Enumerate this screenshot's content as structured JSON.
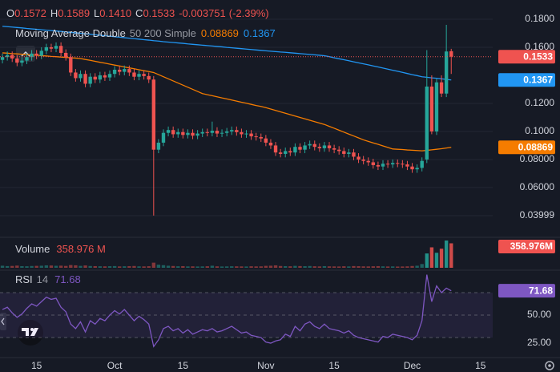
{
  "chart_data": {
    "type": "candlestick",
    "categories": [
      null,
      null,
      null,
      null,
      null,
      null,
      null,
      "15",
      null,
      null,
      null,
      null,
      null,
      null,
      null,
      null,
      null,
      null,
      null,
      null,
      null,
      null,
      null,
      "Oct",
      null,
      null,
      null,
      null,
      null,
      null,
      null,
      null,
      null,
      null,
      null,
      null,
      null,
      "15",
      null,
      null,
      null,
      null,
      null,
      null,
      null,
      null,
      null,
      null,
      null,
      null,
      null,
      null,
      null,
      null,
      "Nov",
      null,
      null,
      null,
      null,
      null,
      null,
      null,
      null,
      null,
      null,
      null,
      null,
      null,
      "15",
      null,
      null,
      null,
      null,
      null,
      null,
      null,
      null,
      null,
      null,
      null,
      null,
      null,
      null,
      null,
      "Dec",
      null,
      null,
      null,
      null,
      null,
      null,
      null,
      null,
      null,
      null,
      null,
      null,
      null,
      "15",
      null,
      null
    ],
    "open": [
      0.151,
      0.153,
      0.1545,
      0.152,
      0.149,
      0.1505,
      0.153,
      0.1555,
      0.154,
      0.1575,
      0.16,
      0.159,
      0.161,
      0.156,
      0.153,
      0.142,
      0.138,
      0.141,
      0.134,
      0.139,
      0.137,
      0.14,
      0.1385,
      0.141,
      0.144,
      0.1425,
      0.1445,
      0.142,
      0.139,
      0.141,
      0.1395,
      0.137,
      0.087,
      0.092,
      0.099,
      0.101,
      0.098,
      0.0995,
      0.0975,
      0.099,
      0.097,
      0.0985,
      0.0995,
      0.099,
      0.1005,
      0.0985,
      0.099,
      0.1,
      0.101,
      0.0995,
      0.098,
      0.0985,
      0.0965,
      0.096,
      0.095,
      0.092,
      0.09,
      0.085,
      0.084,
      0.086,
      0.085,
      0.089,
      0.087,
      0.09,
      0.091,
      0.089,
      0.088,
      0.09,
      0.088,
      0.087,
      0.086,
      0.084,
      0.085,
      0.082,
      0.08,
      0.079,
      0.078,
      0.076,
      0.075,
      0.077,
      0.0765,
      0.0775,
      0.077,
      0.0765,
      0.075,
      0.073,
      0.074,
      0.08,
      0.132,
      0.1,
      0.135,
      0.127,
      0.1572,
      null,
      null,
      null,
      null,
      null,
      null,
      null,
      null
    ],
    "high": [
      0.1555,
      0.157,
      0.157,
      0.1545,
      0.153,
      0.1555,
      0.158,
      0.158,
      0.16,
      0.1625,
      0.1625,
      0.1635,
      0.1635,
      0.1585,
      0.1555,
      0.1445,
      0.1435,
      0.1435,
      0.1415,
      0.1415,
      0.1425,
      0.1425,
      0.1435,
      0.1465,
      0.1465,
      0.147,
      0.147,
      0.1445,
      0.1435,
      0.1435,
      0.142,
      0.1395,
      0.0945,
      0.1015,
      0.1035,
      0.1035,
      0.102,
      0.102,
      0.1015,
      0.1015,
      0.101,
      0.102,
      0.102,
      0.107,
      0.103,
      0.1015,
      0.1025,
      0.1035,
      0.1035,
      0.102,
      0.101,
      0.101,
      0.099,
      0.0985,
      0.0975,
      0.0945,
      0.0925,
      0.0875,
      0.0885,
      0.0885,
      0.0915,
      0.0915,
      0.0925,
      0.0935,
      0.0935,
      0.0915,
      0.0925,
      0.0925,
      0.0905,
      0.0895,
      0.0885,
      0.0875,
      0.0875,
      0.0845,
      0.0825,
      0.0815,
      0.0805,
      0.0785,
      0.0795,
      0.0795,
      0.08,
      0.08,
      0.0795,
      0.079,
      0.0775,
      0.0765,
      0.0815,
      0.158,
      0.14,
      0.1375,
      0.14,
      0.176,
      0.1589,
      null,
      null,
      null,
      null,
      null,
      null,
      null,
      null
    ],
    "low": [
      0.1485,
      0.1505,
      0.1495,
      0.1465,
      0.1465,
      0.148,
      0.1505,
      0.1515,
      0.1515,
      0.155,
      0.1565,
      0.1565,
      0.1535,
      0.1505,
      0.1395,
      0.1355,
      0.1355,
      0.1315,
      0.1315,
      0.1345,
      0.1345,
      0.136,
      0.136,
      0.1385,
      0.14,
      0.14,
      0.1395,
      0.1365,
      0.1365,
      0.137,
      0.1345,
      0.04,
      0.0845,
      0.0895,
      0.0965,
      0.0955,
      0.0955,
      0.095,
      0.095,
      0.0945,
      0.0945,
      0.096,
      0.0965,
      0.0965,
      0.096,
      0.096,
      0.0965,
      0.0975,
      0.097,
      0.0955,
      0.0955,
      0.094,
      0.0935,
      0.0925,
      0.0895,
      0.0875,
      0.0825,
      0.0815,
      0.0815,
      0.0825,
      0.0825,
      0.0845,
      0.0845,
      0.0875,
      0.0865,
      0.0855,
      0.0855,
      0.0855,
      0.0845,
      0.0835,
      0.0815,
      0.0815,
      0.0795,
      0.0775,
      0.0765,
      0.0755,
      0.0735,
      0.0725,
      0.0725,
      0.074,
      0.074,
      0.0745,
      0.074,
      0.0725,
      0.0705,
      0.0705,
      0.0715,
      0.0775,
      0.098,
      0.0975,
      0.1245,
      0.1245,
      0.141,
      null,
      null,
      null,
      null,
      null,
      null,
      null,
      null
    ],
    "close": [
      0.153,
      0.1545,
      0.152,
      0.149,
      0.1505,
      0.153,
      0.1555,
      0.154,
      0.1575,
      0.16,
      0.159,
      0.161,
      0.156,
      0.153,
      0.142,
      0.138,
      0.141,
      0.134,
      0.139,
      0.137,
      0.14,
      0.1385,
      0.141,
      0.144,
      0.1425,
      0.1445,
      0.142,
      0.139,
      0.141,
      0.1395,
      0.137,
      0.087,
      0.092,
      0.099,
      0.101,
      0.098,
      0.0995,
      0.0975,
      0.099,
      0.097,
      0.0985,
      0.0995,
      0.099,
      0.1005,
      0.0985,
      0.099,
      0.1,
      0.101,
      0.0995,
      0.098,
      0.0985,
      0.0965,
      0.096,
      0.095,
      0.092,
      0.09,
      0.085,
      0.084,
      0.086,
      0.085,
      0.089,
      0.087,
      0.09,
      0.091,
      0.089,
      0.088,
      0.09,
      0.088,
      0.087,
      0.086,
      0.084,
      0.085,
      0.082,
      0.08,
      0.079,
      0.078,
      0.076,
      0.075,
      0.077,
      0.0765,
      0.0775,
      0.077,
      0.0765,
      0.075,
      0.073,
      0.074,
      0.079,
      0.132,
      0.1,
      0.135,
      0.127,
      0.157,
      0.1533,
      null,
      null,
      null,
      null,
      null,
      null,
      null,
      null
    ],
    "colors": {
      "up": "#26a69a",
      "down": "#ef5350"
    },
    "ylim": [
      0.0251,
      0.1937
    ],
    "yticks": [
      {
        "value": 0.18,
        "label": "0.1800"
      },
      {
        "value": 0.16,
        "label": "0.1600"
      },
      {
        "value": 0.12,
        "label": "0.1200"
      },
      {
        "value": 0.1,
        "label": "0.1000"
      },
      {
        "value": 0.08,
        "label": "0.08000"
      },
      {
        "value": 0.06,
        "label": "0.06000"
      },
      {
        "value": 0.03999,
        "label": "0.03999"
      }
    ],
    "grid": true,
    "header": {
      "items": [
        {
          "name": "O",
          "value": 0.1572
        },
        {
          "name": "H",
          "value": 0.1589
        },
        {
          "name": "L",
          "value": 0.141,
          "label": "0.1410"
        },
        {
          "name": "C",
          "value": 0.1533
        }
      ],
      "change": -0.003751,
      "change_pct": {
        "value": -2.39,
        "label": "(-2.39%)"
      }
    },
    "indicator": {
      "title": "Moving Average Double",
      "params": "50 200 Simple",
      "series": [
        {
          "color": "#f57c00",
          "values": [
            0.156,
            0.1558,
            0.1555,
            0.1553,
            0.155,
            0.1548,
            0.1545,
            0.1543,
            0.154,
            0.1538,
            0.1535,
            0.1533,
            0.153,
            0.1528,
            0.1525,
            0.1523,
            0.152,
            0.1513,
            0.1507,
            0.15,
            0.1493,
            0.1487,
            0.148,
            0.1473,
            0.1467,
            0.146,
            0.1453,
            0.1447,
            0.144,
            0.1433,
            0.1427,
            0.142,
            0.1405,
            0.139,
            0.1375,
            0.136,
            0.1345,
            0.133,
            0.1315,
            0.13,
            0.1285,
            0.127,
            0.1262,
            0.1255,
            0.1247,
            0.1239,
            0.1232,
            0.1224,
            0.1216,
            0.1208,
            0.1201,
            0.1193,
            0.1185,
            0.1178,
            0.117,
            0.116,
            0.115,
            0.114,
            0.113,
            0.112,
            0.111,
            0.11,
            0.109,
            0.108,
            0.107,
            0.106,
            0.105,
            0.1036,
            0.1023,
            0.1009,
            0.0995,
            0.0981,
            0.0968,
            0.0954,
            0.094,
            0.0929,
            0.0918,
            0.0908,
            0.0897,
            0.0886,
            0.0875,
            0.0873,
            0.0871,
            0.0868,
            0.0866,
            0.0864,
            0.0862,
            0.0865,
            0.0869,
            0.0873,
            0.0877,
            0.0882,
            0.08869,
            null,
            null,
            null,
            null,
            null,
            null,
            null,
            null
          ]
        },
        {
          "color": "#2196f3",
          "values": [
            0.175,
            0.1747,
            0.1744,
            0.1741,
            0.1738,
            0.1734,
            0.1731,
            0.1728,
            0.1725,
            0.1722,
            0.1719,
            0.1716,
            0.1713,
            0.1709,
            0.1706,
            0.1703,
            0.17,
            0.1696,
            0.1693,
            0.1689,
            0.1686,
            0.1682,
            0.1679,
            0.1675,
            0.1672,
            0.1668,
            0.1665,
            0.1661,
            0.1658,
            0.1654,
            0.1651,
            0.1647,
            0.1644,
            0.164,
            0.1637,
            0.1634,
            0.1631,
            0.1628,
            0.1624,
            0.1621,
            0.1618,
            0.1615,
            0.1612,
            0.1609,
            0.1606,
            0.1603,
            0.1599,
            0.1596,
            0.1593,
            0.159,
            0.1587,
            0.1584,
            0.1581,
            0.1578,
            0.1575,
            0.1572,
            0.1569,
            0.1566,
            0.1564,
            0.1561,
            0.1558,
            0.1555,
            0.1552,
            0.1549,
            0.1546,
            0.1543,
            0.154,
            0.1533,
            0.1525,
            0.1518,
            0.1511,
            0.1504,
            0.1496,
            0.1489,
            0.1482,
            0.1475,
            0.1467,
            0.146,
            0.1452,
            0.1444,
            0.1436,
            0.1429,
            0.1421,
            0.1413,
            0.1405,
            0.1398,
            0.139,
            0.1386,
            0.1382,
            0.1379,
            0.1375,
            0.1371,
            0.1367,
            null,
            null,
            null,
            null,
            null,
            null,
            null,
            null
          ]
        }
      ]
    },
    "volume": {
      "title": "Volume",
      "values": [
        30000000,
        25000000,
        27000000,
        32000000,
        24000000,
        22000000,
        26000000,
        28000000,
        30000000,
        35000000,
        33000000,
        29000000,
        31000000,
        27000000,
        40000000,
        36000000,
        28000000,
        34000000,
        26000000,
        24000000,
        22000000,
        21000000,
        23000000,
        25000000,
        20000000,
        22000000,
        24000000,
        26000000,
        21000000,
        20000000,
        23000000,
        75000000,
        45000000,
        38000000,
        30000000,
        26000000,
        22000000,
        24000000,
        20000000,
        21000000,
        19000000,
        20000000,
        22000000,
        30000000,
        21000000,
        19000000,
        20000000,
        22000000,
        21000000,
        20000000,
        19000000,
        22000000,
        20000000,
        21000000,
        28000000,
        30000000,
        35000000,
        26000000,
        24000000,
        22000000,
        28000000,
        25000000,
        23000000,
        26000000,
        22000000,
        20000000,
        24000000,
        21000000,
        20000000,
        19000000,
        22000000,
        20000000,
        25000000,
        23000000,
        21000000,
        20000000,
        22000000,
        24000000,
        21000000,
        19000000,
        20000000,
        18000000,
        19000000,
        21000000,
        26000000,
        30000000,
        55000000,
        210000000,
        300000000,
        220000000,
        280000000,
        400000000,
        358976000,
        null,
        null,
        null,
        null,
        null,
        null,
        null,
        null
      ],
      "current": {
        "value": 358976000,
        "label": "358.976 M",
        "axis_label": "358.976M"
      }
    },
    "rsi": {
      "title": "RSI",
      "length": 14,
      "color": "#7e57c2",
      "values": [
        55,
        57,
        52,
        48,
        51,
        56,
        60,
        58,
        62,
        66,
        64,
        65,
        57,
        53,
        42,
        38,
        44,
        35,
        45,
        42,
        47,
        45,
        50,
        54,
        51,
        55,
        50,
        45,
        49,
        46,
        42,
        22,
        28,
        38,
        40,
        36,
        38,
        34,
        37,
        33,
        35,
        37,
        36,
        38,
        35,
        36,
        38,
        40,
        37,
        34,
        35,
        32,
        31,
        30,
        26,
        25,
        27,
        28,
        33,
        31,
        40,
        36,
        42,
        44,
        40,
        38,
        42,
        38,
        37,
        36,
        34,
        36,
        32,
        30,
        29,
        28,
        27,
        26,
        31,
        30,
        33,
        32,
        31,
        30,
        28,
        32,
        45,
        86,
        62,
        76,
        70,
        74,
        71.68,
        null,
        null,
        null,
        null,
        null,
        null,
        null,
        null
      ],
      "ylim": [
        12.9,
        90
      ],
      "yticks": [
        {
          "value": 50,
          "label": "50.00"
        },
        {
          "value": 25,
          "label": "25.00"
        }
      ],
      "levels": [
        70,
        50,
        30
      ]
    }
  }
}
